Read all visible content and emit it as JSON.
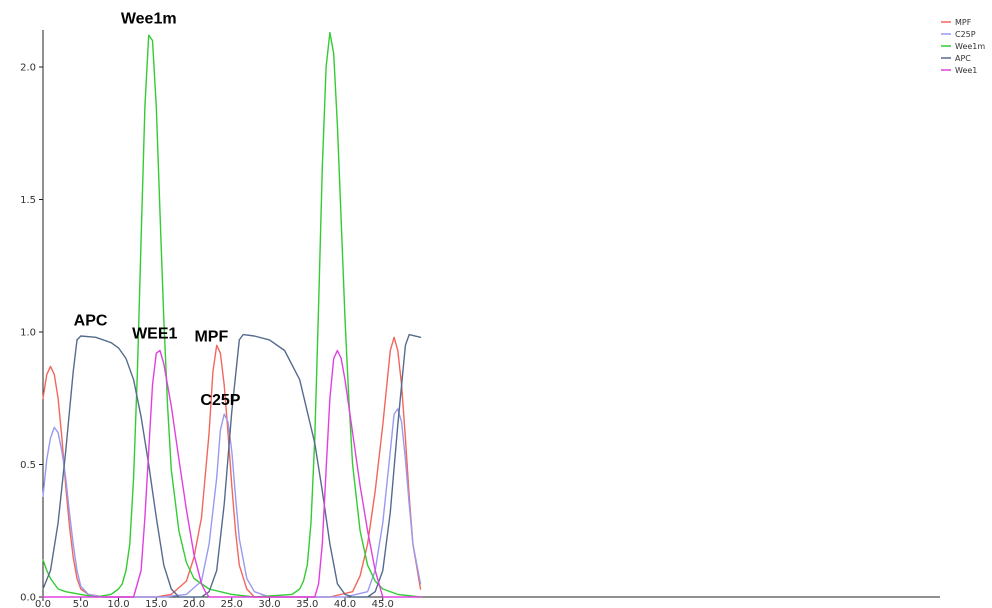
{
  "chart_data": {
    "type": "line",
    "title": "",
    "xlabel": "",
    "ylabel": "",
    "xlim": [
      0,
      50
    ],
    "ylim": [
      0,
      2.15
    ],
    "grid": false,
    "legend_position": "top-right",
    "x_ticks": [
      0,
      5,
      10,
      15,
      20,
      25,
      30,
      35,
      40,
      45
    ],
    "x_tick_labels": [
      "0.0",
      "5.0",
      "10.0",
      "15.0",
      "20.0",
      "25.0",
      "30.0",
      "35.0",
      "40.0",
      "45.0"
    ],
    "y_ticks": [
      0,
      0.5,
      1.0,
      1.5,
      2.0
    ],
    "y_tick_labels": [
      "0.0",
      "0.5",
      "1.0",
      "1.5",
      "2.0"
    ],
    "series": [
      {
        "name": "MPF",
        "color": "#f2665c",
        "points": [
          [
            0,
            0.75
          ],
          [
            0.5,
            0.84
          ],
          [
            1,
            0.87
          ],
          [
            1.5,
            0.84
          ],
          [
            2,
            0.75
          ],
          [
            2.5,
            0.6
          ],
          [
            3,
            0.42
          ],
          [
            3.5,
            0.27
          ],
          [
            4,
            0.15
          ],
          [
            4.5,
            0.07
          ],
          [
            5,
            0.03
          ],
          [
            6,
            0.01
          ],
          [
            8,
            0
          ],
          [
            15,
            0
          ],
          [
            17,
            0.01
          ],
          [
            19,
            0.06
          ],
          [
            20,
            0.15
          ],
          [
            21,
            0.3
          ],
          [
            22,
            0.62
          ],
          [
            22.5,
            0.85
          ],
          [
            23,
            0.95
          ],
          [
            23.5,
            0.92
          ],
          [
            24,
            0.8
          ],
          [
            24.5,
            0.62
          ],
          [
            25,
            0.42
          ],
          [
            25.5,
            0.25
          ],
          [
            26,
            0.12
          ],
          [
            27,
            0.03
          ],
          [
            28,
            0
          ],
          [
            38,
            0
          ],
          [
            41,
            0.02
          ],
          [
            42,
            0.08
          ],
          [
            43,
            0.2
          ],
          [
            44,
            0.4
          ],
          [
            45,
            0.65
          ],
          [
            46,
            0.93
          ],
          [
            46.5,
            0.98
          ],
          [
            47,
            0.93
          ],
          [
            47.5,
            0.8
          ],
          [
            48,
            0.6
          ],
          [
            48.5,
            0.38
          ],
          [
            49,
            0.2
          ],
          [
            50,
            0.03
          ]
        ]
      },
      {
        "name": "C25P",
        "color": "#9999f0",
        "points": [
          [
            0,
            0.38
          ],
          [
            0.5,
            0.52
          ],
          [
            1,
            0.6
          ],
          [
            1.5,
            0.64
          ],
          [
            2,
            0.62
          ],
          [
            2.5,
            0.55
          ],
          [
            3,
            0.45
          ],
          [
            3.5,
            0.32
          ],
          [
            4,
            0.2
          ],
          [
            4.5,
            0.1
          ],
          [
            5,
            0.04
          ],
          [
            6,
            0.01
          ],
          [
            8,
            0
          ],
          [
            16,
            0
          ],
          [
            19,
            0.01
          ],
          [
            21,
            0.06
          ],
          [
            22,
            0.2
          ],
          [
            23,
            0.45
          ],
          [
            23.5,
            0.63
          ],
          [
            24,
            0.69
          ],
          [
            24.5,
            0.66
          ],
          [
            25,
            0.55
          ],
          [
            25.5,
            0.38
          ],
          [
            26,
            0.22
          ],
          [
            27,
            0.07
          ],
          [
            28,
            0.02
          ],
          [
            30,
            0
          ],
          [
            40,
            0
          ],
          [
            43,
            0.02
          ],
          [
            44,
            0.1
          ],
          [
            45,
            0.28
          ],
          [
            46,
            0.55
          ],
          [
            46.5,
            0.69
          ],
          [
            47,
            0.71
          ],
          [
            47.5,
            0.66
          ],
          [
            48,
            0.52
          ],
          [
            48.5,
            0.35
          ],
          [
            49,
            0.2
          ],
          [
            50,
            0.05
          ]
        ]
      },
      {
        "name": "Wee1m",
        "color": "#33cc33",
        "points": [
          [
            0,
            0.14
          ],
          [
            0.5,
            0.1
          ],
          [
            1,
            0.07
          ],
          [
            2,
            0.03
          ],
          [
            3,
            0.02
          ],
          [
            5,
            0.01
          ],
          [
            7,
            0
          ],
          [
            9,
            0.01
          ],
          [
            10,
            0.03
          ],
          [
            10.5,
            0.05
          ],
          [
            11,
            0.1
          ],
          [
            11.5,
            0.2
          ],
          [
            12,
            0.45
          ],
          [
            12.5,
            0.85
          ],
          [
            13,
            1.35
          ],
          [
            13.5,
            1.85
          ],
          [
            14,
            2.12
          ],
          [
            14.5,
            2.1
          ],
          [
            15,
            1.85
          ],
          [
            15.5,
            1.45
          ],
          [
            16,
            1.05
          ],
          [
            16.5,
            0.72
          ],
          [
            17,
            0.48
          ],
          [
            18,
            0.25
          ],
          [
            19,
            0.13
          ],
          [
            20,
            0.07
          ],
          [
            22,
            0.03
          ],
          [
            25,
            0.01
          ],
          [
            28,
            0
          ],
          [
            33,
            0.01
          ],
          [
            34,
            0.03
          ],
          [
            34.5,
            0.06
          ],
          [
            35,
            0.12
          ],
          [
            35.5,
            0.28
          ],
          [
            36,
            0.6
          ],
          [
            36.5,
            1.1
          ],
          [
            37,
            1.62
          ],
          [
            37.5,
            2.0
          ],
          [
            38,
            2.13
          ],
          [
            38.5,
            2.05
          ],
          [
            39,
            1.78
          ],
          [
            39.5,
            1.42
          ],
          [
            40,
            1.05
          ],
          [
            40.5,
            0.75
          ],
          [
            41,
            0.5
          ],
          [
            42,
            0.25
          ],
          [
            43,
            0.12
          ],
          [
            44,
            0.06
          ],
          [
            45,
            0.03
          ],
          [
            47,
            0.01
          ],
          [
            50,
            0
          ]
        ]
      },
      {
        "name": "APC",
        "color": "#556b8d",
        "points": [
          [
            0,
            0.03
          ],
          [
            1,
            0.1
          ],
          [
            2,
            0.28
          ],
          [
            3,
            0.55
          ],
          [
            4,
            0.85
          ],
          [
            4.5,
            0.97
          ],
          [
            5,
            0.985
          ],
          [
            7,
            0.98
          ],
          [
            9,
            0.96
          ],
          [
            10,
            0.94
          ],
          [
            11,
            0.9
          ],
          [
            12,
            0.82
          ],
          [
            13,
            0.68
          ],
          [
            14,
            0.5
          ],
          [
            15,
            0.3
          ],
          [
            16,
            0.12
          ],
          [
            17,
            0.03
          ],
          [
            18,
            0
          ],
          [
            21,
            0
          ],
          [
            22,
            0.02
          ],
          [
            23,
            0.1
          ],
          [
            24,
            0.35
          ],
          [
            25,
            0.7
          ],
          [
            26,
            0.97
          ],
          [
            26.5,
            0.99
          ],
          [
            28,
            0.985
          ],
          [
            30,
            0.97
          ],
          [
            32,
            0.93
          ],
          [
            34,
            0.82
          ],
          [
            36,
            0.58
          ],
          [
            37,
            0.4
          ],
          [
            38,
            0.2
          ],
          [
            39,
            0.05
          ],
          [
            40,
            0.01
          ],
          [
            41,
            0
          ],
          [
            43,
            0
          ],
          [
            44,
            0.02
          ],
          [
            45,
            0.1
          ],
          [
            46,
            0.32
          ],
          [
            47,
            0.65
          ],
          [
            48,
            0.95
          ],
          [
            48.5,
            0.99
          ],
          [
            50,
            0.98
          ]
        ]
      },
      {
        "name": "Wee1",
        "color": "#e040e0",
        "points": [
          [
            0,
            0
          ],
          [
            12,
            0
          ],
          [
            13,
            0.1
          ],
          [
            13.5,
            0.3
          ],
          [
            14,
            0.55
          ],
          [
            14.5,
            0.8
          ],
          [
            15,
            0.92
          ],
          [
            15.5,
            0.93
          ],
          [
            16,
            0.88
          ],
          [
            17,
            0.72
          ],
          [
            18,
            0.52
          ],
          [
            19,
            0.33
          ],
          [
            20,
            0.16
          ],
          [
            21,
            0.05
          ],
          [
            21.5,
            0.02
          ],
          [
            22,
            0
          ],
          [
            36,
            0
          ],
          [
            36.5,
            0.05
          ],
          [
            37,
            0.2
          ],
          [
            37.5,
            0.48
          ],
          [
            38,
            0.75
          ],
          [
            38.5,
            0.9
          ],
          [
            39,
            0.93
          ],
          [
            39.5,
            0.9
          ],
          [
            40,
            0.82
          ],
          [
            41,
            0.62
          ],
          [
            42,
            0.42
          ],
          [
            43,
            0.25
          ],
          [
            44,
            0.1
          ],
          [
            44.5,
            0.05
          ],
          [
            45,
            0
          ],
          [
            50,
            0
          ]
        ]
      }
    ],
    "annotations": [
      {
        "text": "Wee1m",
        "x": 14,
        "y": 2.15
      },
      {
        "text": "APC",
        "x": 6.3,
        "y": 1.01
      },
      {
        "text": "WEE1",
        "x": 14.8,
        "y": 0.96
      },
      {
        "text": "MPF",
        "x": 22.3,
        "y": 0.95
      },
      {
        "text": "C25P",
        "x": 23.5,
        "y": 0.71
      }
    ]
  }
}
